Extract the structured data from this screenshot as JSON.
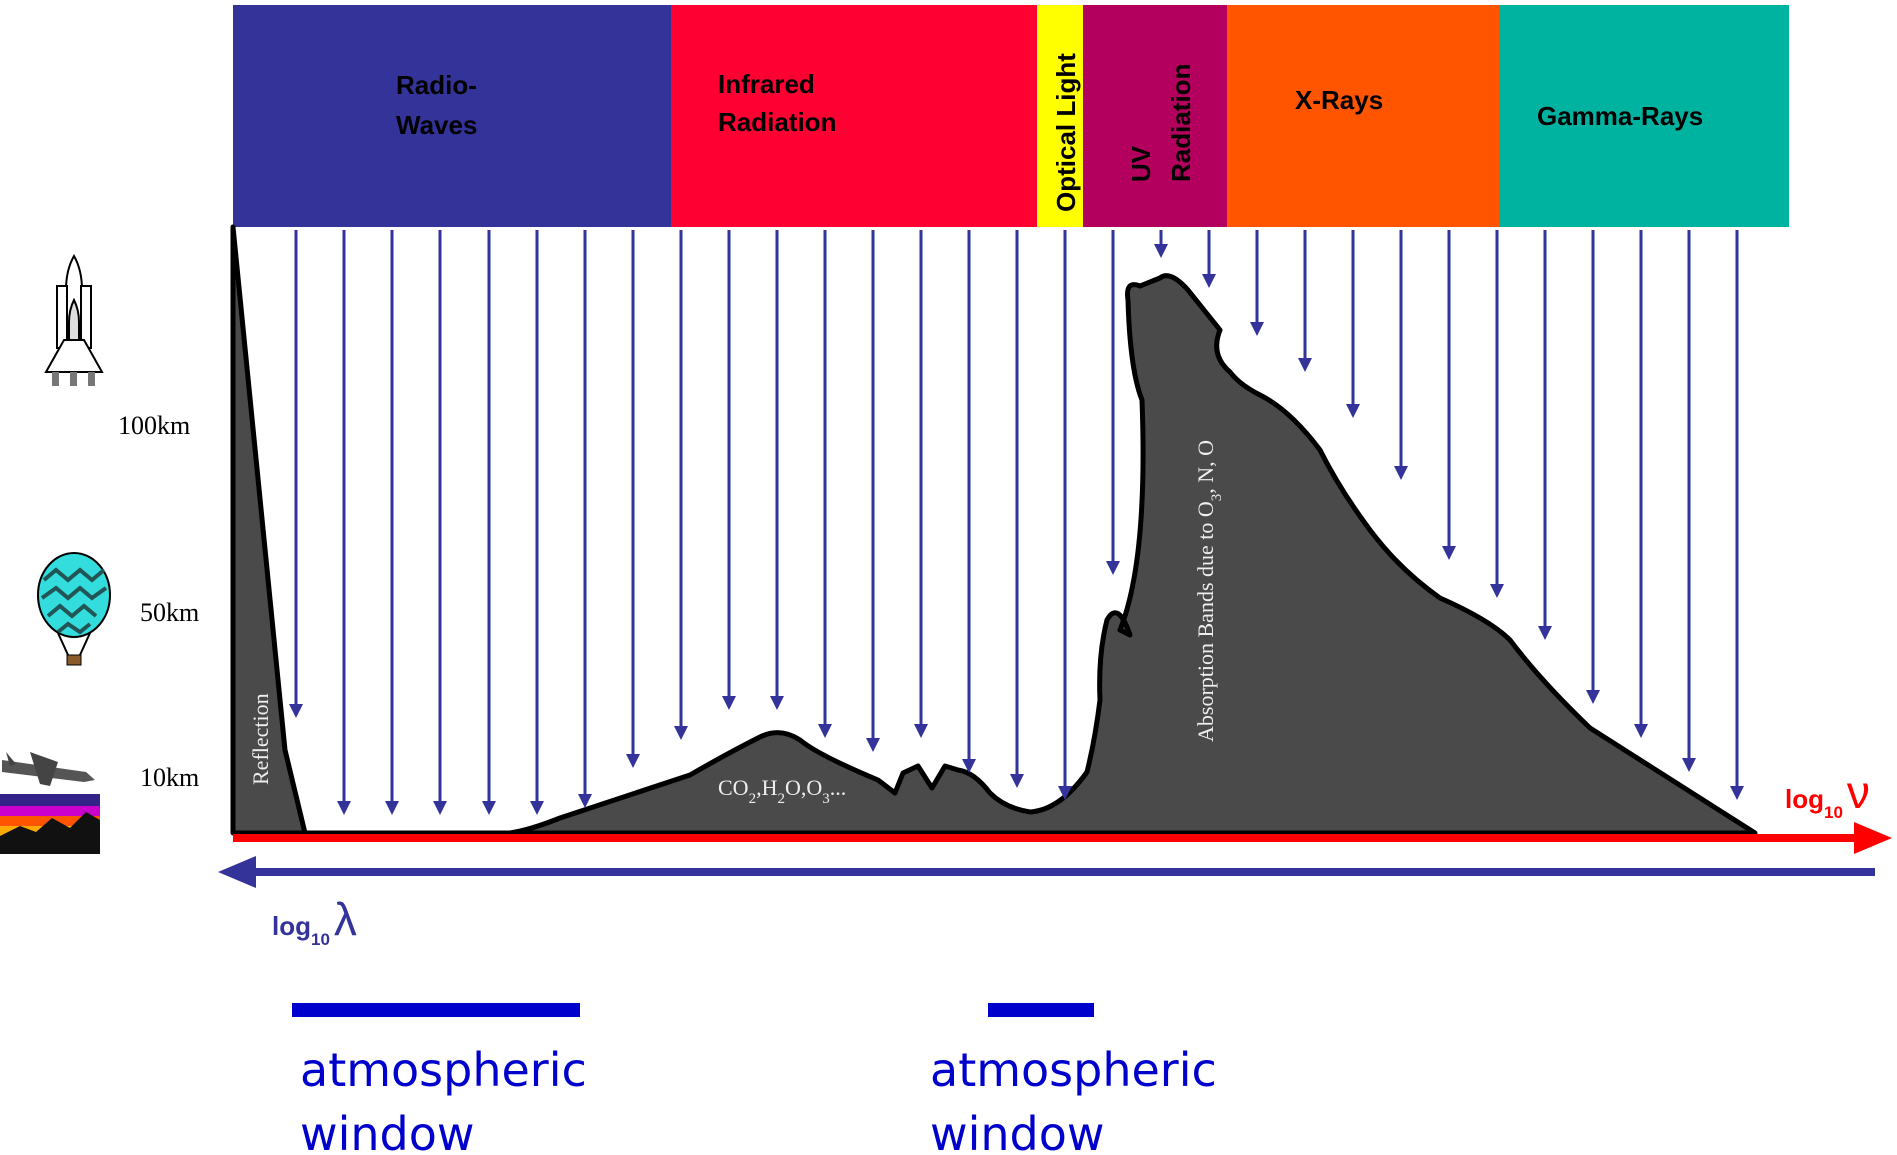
{
  "bands": [
    {
      "id": "radio",
      "lines": [
        "Radio-",
        "Waves"
      ],
      "color": "#333399",
      "vertical": false
    },
    {
      "id": "infrared",
      "lines": [
        "Infrared",
        "Radiation"
      ],
      "color": "#ff0033",
      "vertical": false
    },
    {
      "id": "optical",
      "lines": [
        "Optical Light"
      ],
      "color": "#ffff00",
      "vertical": true
    },
    {
      "id": "uv",
      "lines": [
        "UV",
        "Radiation"
      ],
      "color": "#b3005e",
      "vertical": true
    },
    {
      "id": "xray",
      "lines": [
        "X-Rays"
      ],
      "color": "#ff5500",
      "vertical": false
    },
    {
      "id": "gamma",
      "lines": [
        "Gamma-Rays"
      ],
      "color": "#00b3a0",
      "vertical": false
    }
  ],
  "altitudes": {
    "high": "100km",
    "mid": "50km",
    "low": "10km"
  },
  "annotations": {
    "reflection": "Reflection",
    "absorption_ir": "CO2,H2O,O3...",
    "absorption_uv": "Absorption Bands due to O3, N, O"
  },
  "axes": {
    "frequency": {
      "prefix": "log",
      "sub": "10",
      "symbol": "ν"
    },
    "wavelength": {
      "prefix": "log",
      "sub": "10",
      "symbol": "λ"
    }
  },
  "windows": [
    {
      "line1": "atmospheric",
      "line2": "window"
    },
    {
      "line1": "atmospheric",
      "line2": "window"
    }
  ],
  "colors": {
    "absorption_fill": "#4a4a4a",
    "arrow": "#333399",
    "frequency_axis": "#ff0000",
    "wavelength_axis": "#333399",
    "window_bar": "#0000cc"
  },
  "icons": [
    "space-shuttle-icon",
    "hot-air-balloon-icon",
    "airplane-icon",
    "mountain-horizon-icon"
  ]
}
